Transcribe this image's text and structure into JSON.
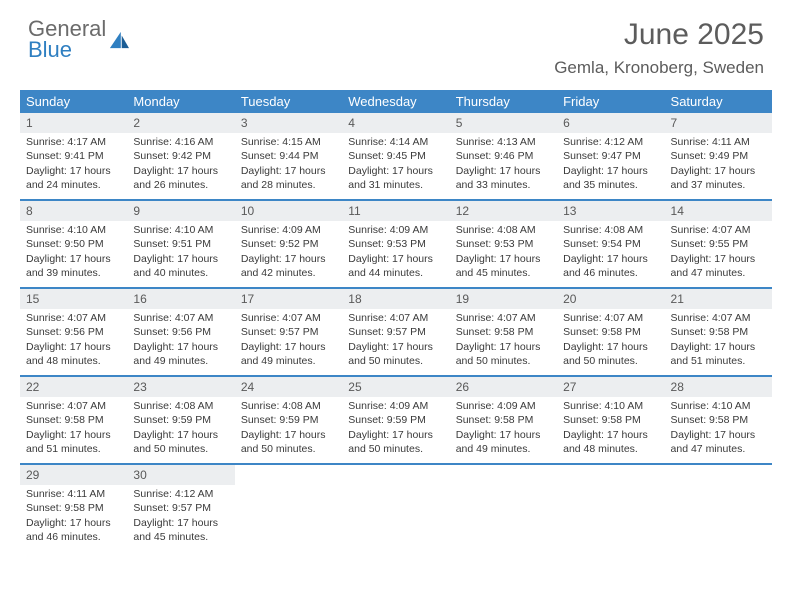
{
  "logo": {
    "general": "General",
    "blue": "Blue"
  },
  "title": "June 2025",
  "location": "Gemla, Kronoberg, Sweden",
  "headers": [
    "Sunday",
    "Monday",
    "Tuesday",
    "Wednesday",
    "Thursday",
    "Friday",
    "Saturday"
  ],
  "colors": {
    "header_bg": "#3d86c6",
    "header_text": "#ffffff",
    "daynum_bg": "#eceef0",
    "border": "#3d86c6",
    "title_color": "#5c5c5c",
    "logo_gray": "#6b6b6b",
    "logo_blue": "#2f7fc1"
  },
  "days": [
    {
      "n": "1",
      "sr": "Sunrise: 4:17 AM",
      "ss": "Sunset: 9:41 PM",
      "dl1": "Daylight: 17 hours",
      "dl2": "and 24 minutes."
    },
    {
      "n": "2",
      "sr": "Sunrise: 4:16 AM",
      "ss": "Sunset: 9:42 PM",
      "dl1": "Daylight: 17 hours",
      "dl2": "and 26 minutes."
    },
    {
      "n": "3",
      "sr": "Sunrise: 4:15 AM",
      "ss": "Sunset: 9:44 PM",
      "dl1": "Daylight: 17 hours",
      "dl2": "and 28 minutes."
    },
    {
      "n": "4",
      "sr": "Sunrise: 4:14 AM",
      "ss": "Sunset: 9:45 PM",
      "dl1": "Daylight: 17 hours",
      "dl2": "and 31 minutes."
    },
    {
      "n": "5",
      "sr": "Sunrise: 4:13 AM",
      "ss": "Sunset: 9:46 PM",
      "dl1": "Daylight: 17 hours",
      "dl2": "and 33 minutes."
    },
    {
      "n": "6",
      "sr": "Sunrise: 4:12 AM",
      "ss": "Sunset: 9:47 PM",
      "dl1": "Daylight: 17 hours",
      "dl2": "and 35 minutes."
    },
    {
      "n": "7",
      "sr": "Sunrise: 4:11 AM",
      "ss": "Sunset: 9:49 PM",
      "dl1": "Daylight: 17 hours",
      "dl2": "and 37 minutes."
    },
    {
      "n": "8",
      "sr": "Sunrise: 4:10 AM",
      "ss": "Sunset: 9:50 PM",
      "dl1": "Daylight: 17 hours",
      "dl2": "and 39 minutes."
    },
    {
      "n": "9",
      "sr": "Sunrise: 4:10 AM",
      "ss": "Sunset: 9:51 PM",
      "dl1": "Daylight: 17 hours",
      "dl2": "and 40 minutes."
    },
    {
      "n": "10",
      "sr": "Sunrise: 4:09 AM",
      "ss": "Sunset: 9:52 PM",
      "dl1": "Daylight: 17 hours",
      "dl2": "and 42 minutes."
    },
    {
      "n": "11",
      "sr": "Sunrise: 4:09 AM",
      "ss": "Sunset: 9:53 PM",
      "dl1": "Daylight: 17 hours",
      "dl2": "and 44 minutes."
    },
    {
      "n": "12",
      "sr": "Sunrise: 4:08 AM",
      "ss": "Sunset: 9:53 PM",
      "dl1": "Daylight: 17 hours",
      "dl2": "and 45 minutes."
    },
    {
      "n": "13",
      "sr": "Sunrise: 4:08 AM",
      "ss": "Sunset: 9:54 PM",
      "dl1": "Daylight: 17 hours",
      "dl2": "and 46 minutes."
    },
    {
      "n": "14",
      "sr": "Sunrise: 4:07 AM",
      "ss": "Sunset: 9:55 PM",
      "dl1": "Daylight: 17 hours",
      "dl2": "and 47 minutes."
    },
    {
      "n": "15",
      "sr": "Sunrise: 4:07 AM",
      "ss": "Sunset: 9:56 PM",
      "dl1": "Daylight: 17 hours",
      "dl2": "and 48 minutes."
    },
    {
      "n": "16",
      "sr": "Sunrise: 4:07 AM",
      "ss": "Sunset: 9:56 PM",
      "dl1": "Daylight: 17 hours",
      "dl2": "and 49 minutes."
    },
    {
      "n": "17",
      "sr": "Sunrise: 4:07 AM",
      "ss": "Sunset: 9:57 PM",
      "dl1": "Daylight: 17 hours",
      "dl2": "and 49 minutes."
    },
    {
      "n": "18",
      "sr": "Sunrise: 4:07 AM",
      "ss": "Sunset: 9:57 PM",
      "dl1": "Daylight: 17 hours",
      "dl2": "and 50 minutes."
    },
    {
      "n": "19",
      "sr": "Sunrise: 4:07 AM",
      "ss": "Sunset: 9:58 PM",
      "dl1": "Daylight: 17 hours",
      "dl2": "and 50 minutes."
    },
    {
      "n": "20",
      "sr": "Sunrise: 4:07 AM",
      "ss": "Sunset: 9:58 PM",
      "dl1": "Daylight: 17 hours",
      "dl2": "and 50 minutes."
    },
    {
      "n": "21",
      "sr": "Sunrise: 4:07 AM",
      "ss": "Sunset: 9:58 PM",
      "dl1": "Daylight: 17 hours",
      "dl2": "and 51 minutes."
    },
    {
      "n": "22",
      "sr": "Sunrise: 4:07 AM",
      "ss": "Sunset: 9:58 PM",
      "dl1": "Daylight: 17 hours",
      "dl2": "and 51 minutes."
    },
    {
      "n": "23",
      "sr": "Sunrise: 4:08 AM",
      "ss": "Sunset: 9:59 PM",
      "dl1": "Daylight: 17 hours",
      "dl2": "and 50 minutes."
    },
    {
      "n": "24",
      "sr": "Sunrise: 4:08 AM",
      "ss": "Sunset: 9:59 PM",
      "dl1": "Daylight: 17 hours",
      "dl2": "and 50 minutes."
    },
    {
      "n": "25",
      "sr": "Sunrise: 4:09 AM",
      "ss": "Sunset: 9:59 PM",
      "dl1": "Daylight: 17 hours",
      "dl2": "and 50 minutes."
    },
    {
      "n": "26",
      "sr": "Sunrise: 4:09 AM",
      "ss": "Sunset: 9:58 PM",
      "dl1": "Daylight: 17 hours",
      "dl2": "and 49 minutes."
    },
    {
      "n": "27",
      "sr": "Sunrise: 4:10 AM",
      "ss": "Sunset: 9:58 PM",
      "dl1": "Daylight: 17 hours",
      "dl2": "and 48 minutes."
    },
    {
      "n": "28",
      "sr": "Sunrise: 4:10 AM",
      "ss": "Sunset: 9:58 PM",
      "dl1": "Daylight: 17 hours",
      "dl2": "and 47 minutes."
    },
    {
      "n": "29",
      "sr": "Sunrise: 4:11 AM",
      "ss": "Sunset: 9:58 PM",
      "dl1": "Daylight: 17 hours",
      "dl2": "and 46 minutes."
    },
    {
      "n": "30",
      "sr": "Sunrise: 4:12 AM",
      "ss": "Sunset: 9:57 PM",
      "dl1": "Daylight: 17 hours",
      "dl2": "and 45 minutes."
    }
  ]
}
